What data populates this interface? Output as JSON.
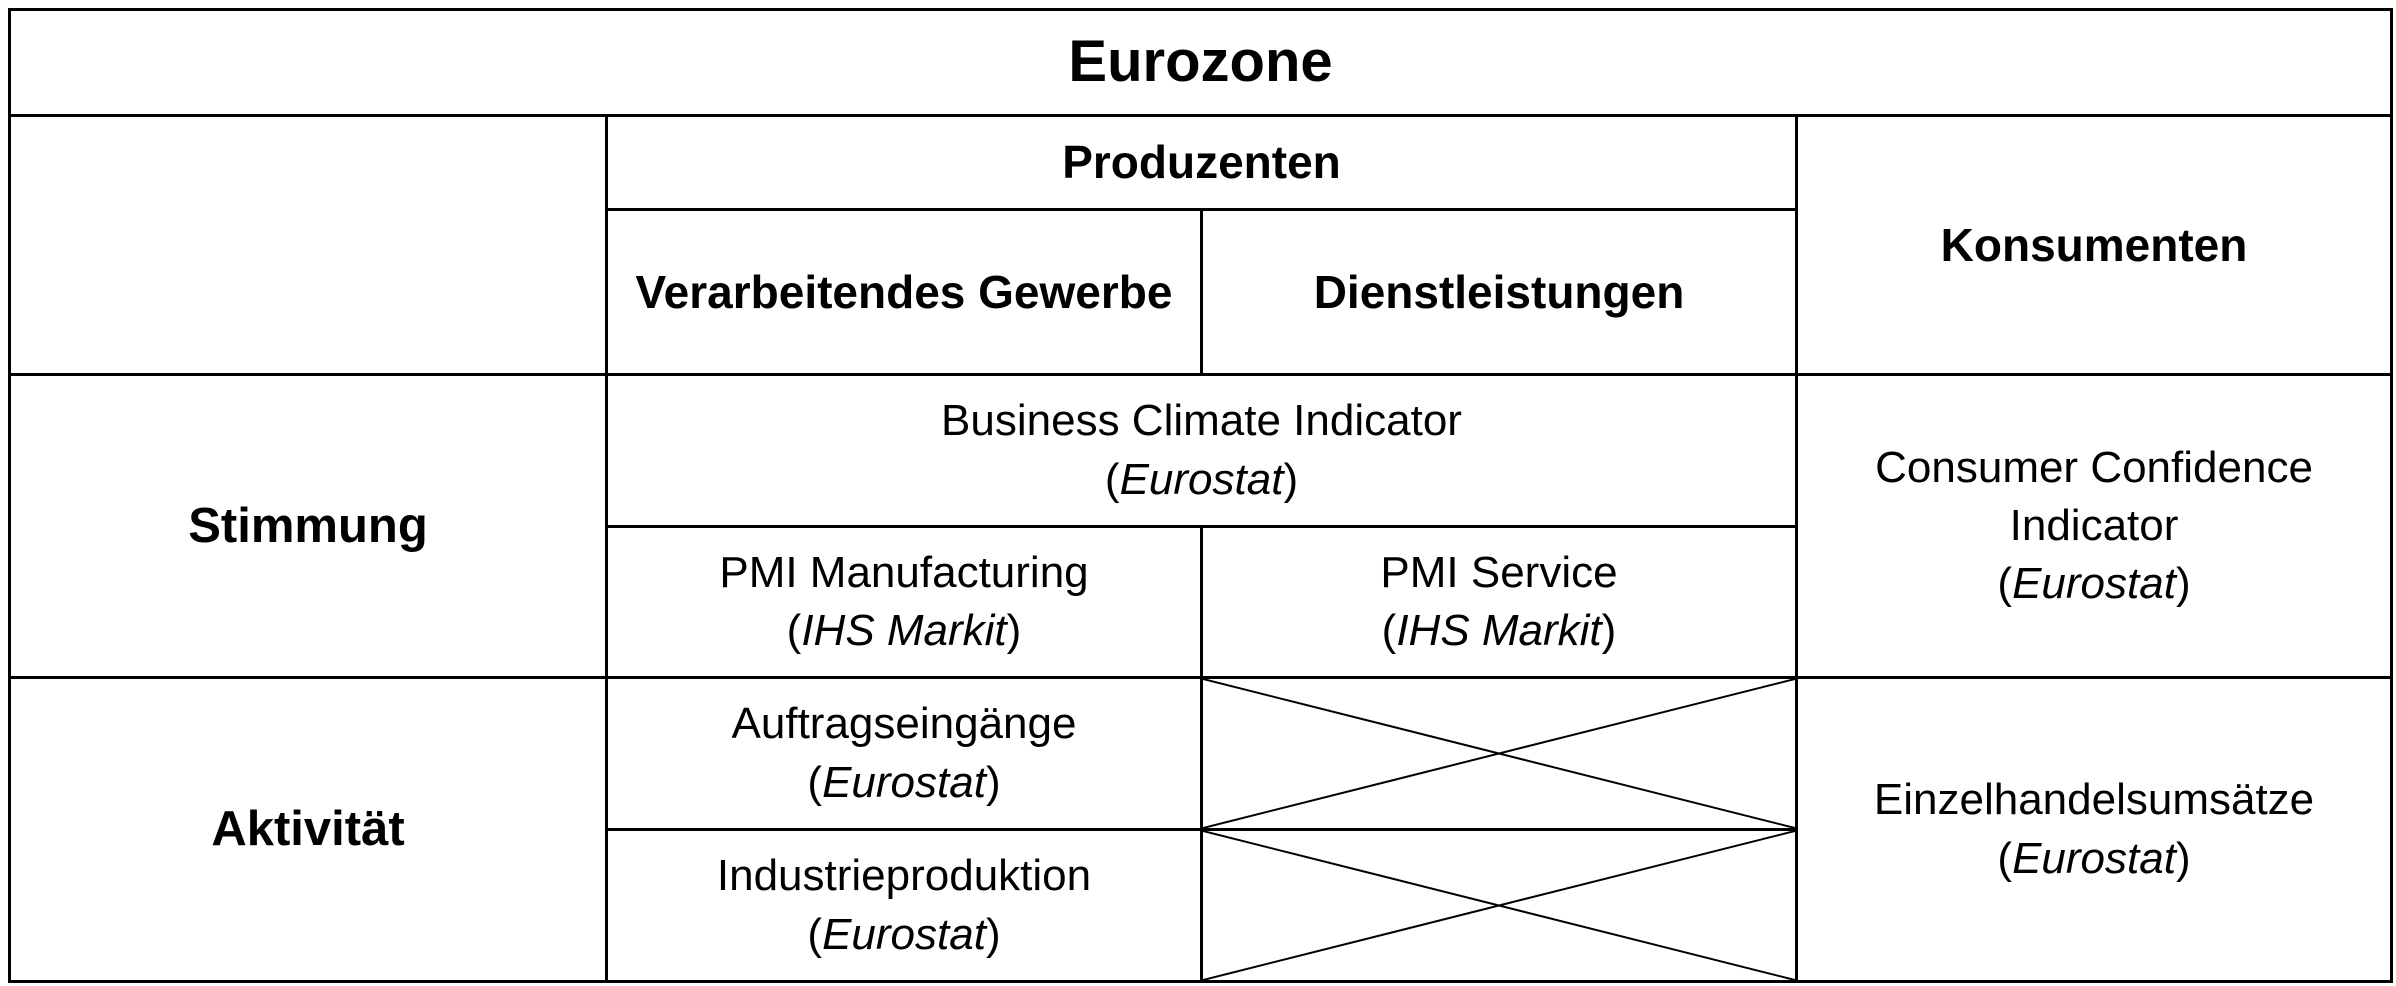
{
  "table": {
    "title": "Eurozone",
    "headers": {
      "producers": "Produzenten",
      "manufacturing": "Verarbeitendes Gewerbe",
      "services": "Dienstleistungen",
      "consumers": "Konsumenten"
    },
    "rows": {
      "sentiment": "Stimmung",
      "activity": "Aktivität"
    },
    "cells": {
      "business_climate": {
        "name": "Business Climate Indicator",
        "source": "Eurostat"
      },
      "pmi_manufacturing": {
        "name": "PMI Manufacturing",
        "source": "IHS Markit"
      },
      "pmi_service": {
        "name": "PMI Service",
        "source": "IHS Markit"
      },
      "consumer_confidence": {
        "name": "Consumer Confidence Indicator",
        "source": "Eurostat"
      },
      "orders": {
        "name": "Auftragseingänge",
        "source": "Eurostat"
      },
      "industrial_production": {
        "name": "Industrieproduktion",
        "source": "Eurostat"
      },
      "retail_sales": {
        "name": "Einzelhandelsumsätze",
        "source": "Eurostat"
      }
    }
  }
}
